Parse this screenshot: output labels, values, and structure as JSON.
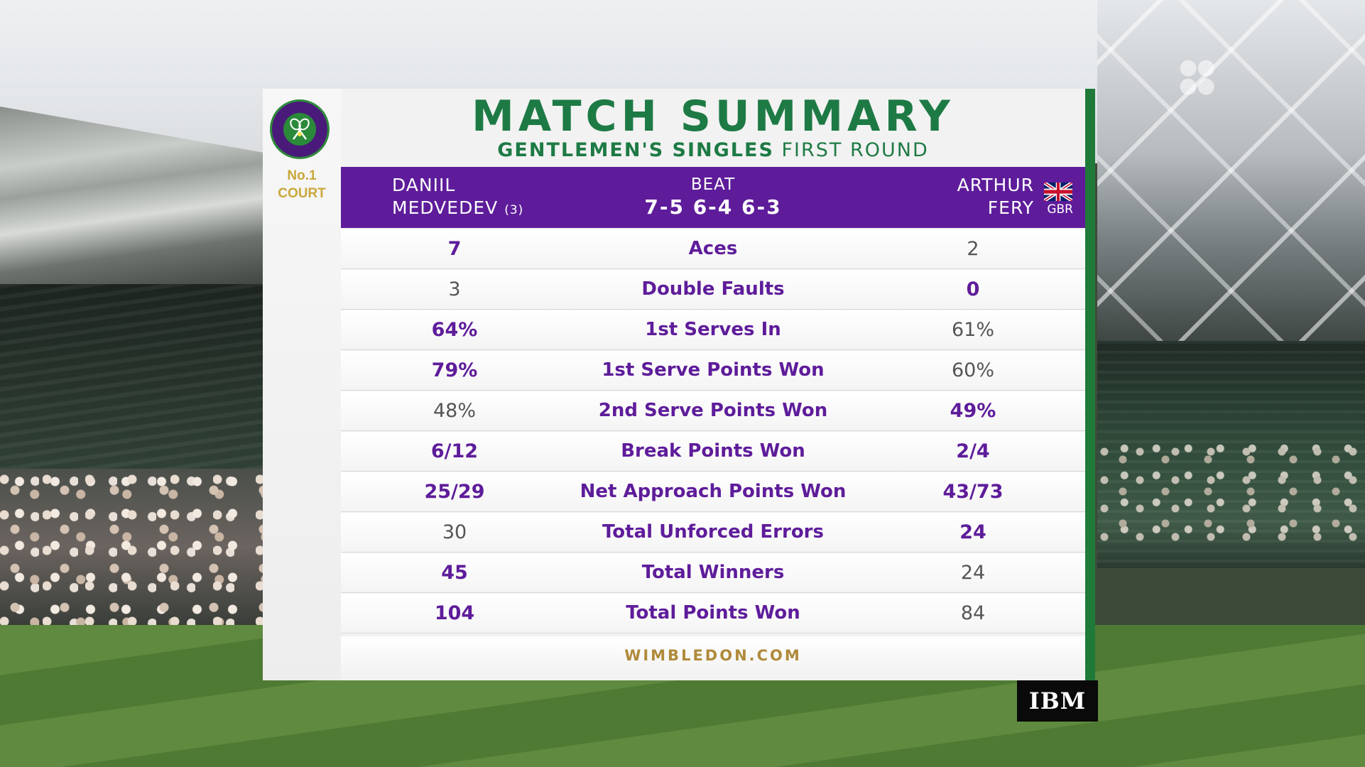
{
  "title": "MATCH SUMMARY",
  "subtitle": {
    "event": "GENTLEMEN'S SINGLES",
    "round": "FIRST ROUND"
  },
  "venue": {
    "court_line1": "No.1",
    "court_line2": "COURT"
  },
  "header": {
    "player1": {
      "first": "DANIIL",
      "last": "MEDVEDEV",
      "seed": "(3)"
    },
    "result": "BEAT",
    "score": "7-5 6-4 6-3",
    "player2": {
      "first": "ARTHUR",
      "last": "FERY",
      "country": "GBR"
    }
  },
  "stats": [
    {
      "label": "Aces",
      "p1": "7",
      "p2": "2",
      "leader": "p1"
    },
    {
      "label": "Double Faults",
      "p1": "3",
      "p2": "0",
      "leader": "p2"
    },
    {
      "label": "1st Serves In",
      "p1": "64%",
      "p2": "61%",
      "leader": "p1"
    },
    {
      "label": "1st Serve Points Won",
      "p1": "79%",
      "p2": "60%",
      "leader": "p1"
    },
    {
      "label": "2nd Serve Points Won",
      "p1": "48%",
      "p2": "49%",
      "leader": "p2"
    },
    {
      "label": "Break Points Won",
      "p1": "6/12",
      "p2": "2/4",
      "leader": "both"
    },
    {
      "label": "Net Approach Points Won",
      "p1": "25/29",
      "p2": "43/73",
      "leader": "both"
    },
    {
      "label": "Total Unforced Errors",
      "p1": "30",
      "p2": "24",
      "leader": "p2"
    },
    {
      "label": "Total Winners",
      "p1": "45",
      "p2": "24",
      "leader": "p1"
    },
    {
      "label": "Total Points Won",
      "p1": "104",
      "p2": "84",
      "leader": "p1"
    }
  ],
  "footer": "WIMBLEDON.COM",
  "sponsor": "IBM",
  "colors": {
    "purple": "#5e1c9a",
    "green": "#1e7a45",
    "gold": "#b08a3a"
  },
  "icons": {
    "logo": "wimbledon-logo-icon",
    "flag": "gbr-flag-icon"
  }
}
